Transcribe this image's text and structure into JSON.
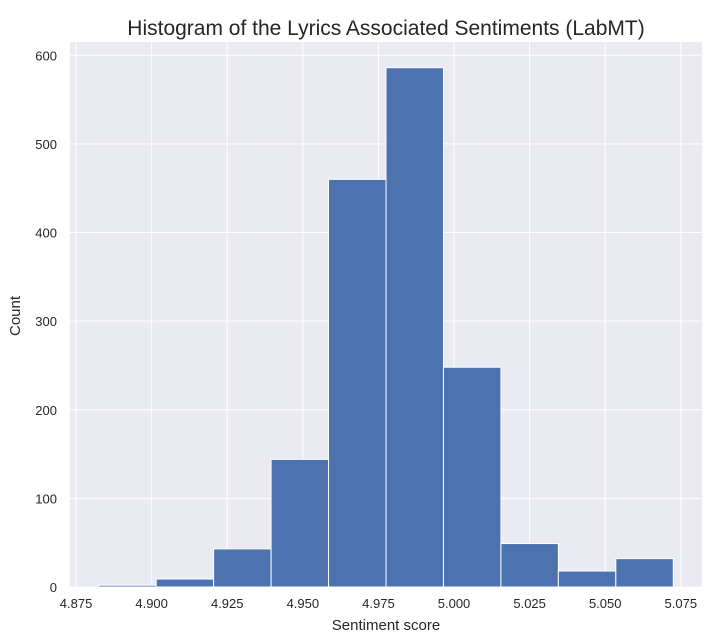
{
  "chart_data": {
    "type": "bar",
    "title": "Histogram of the Lyrics Associated Sentiments (LabMT)",
    "xlabel": "Sentiment score",
    "ylabel": "Count",
    "bin_edges": [
      4.8825,
      4.9015,
      4.9205,
      4.9395,
      4.9585,
      4.9775,
      4.9965,
      5.0155,
      5.0345,
      5.0535,
      5.0725
    ],
    "values": [
      2,
      9,
      43,
      144,
      460,
      586,
      248,
      49,
      18,
      32
    ],
    "xlim": [
      4.873,
      5.082
    ],
    "ylim": [
      0,
      615
    ],
    "xticks": [
      "4.875",
      "4.900",
      "4.925",
      "4.950",
      "4.975",
      "5.000",
      "5.025",
      "5.050",
      "5.075"
    ],
    "xtick_values": [
      4.875,
      4.9,
      4.925,
      4.95,
      4.975,
      5.0,
      5.025,
      5.05,
      5.075
    ],
    "yticks": [
      "0",
      "100",
      "200",
      "300",
      "400",
      "500",
      "600"
    ],
    "ytick_values": [
      0,
      100,
      200,
      300,
      400,
      500,
      600
    ],
    "grid": true,
    "colors": {
      "bar": "#4c72b0",
      "background": "#eaeaf2"
    }
  }
}
